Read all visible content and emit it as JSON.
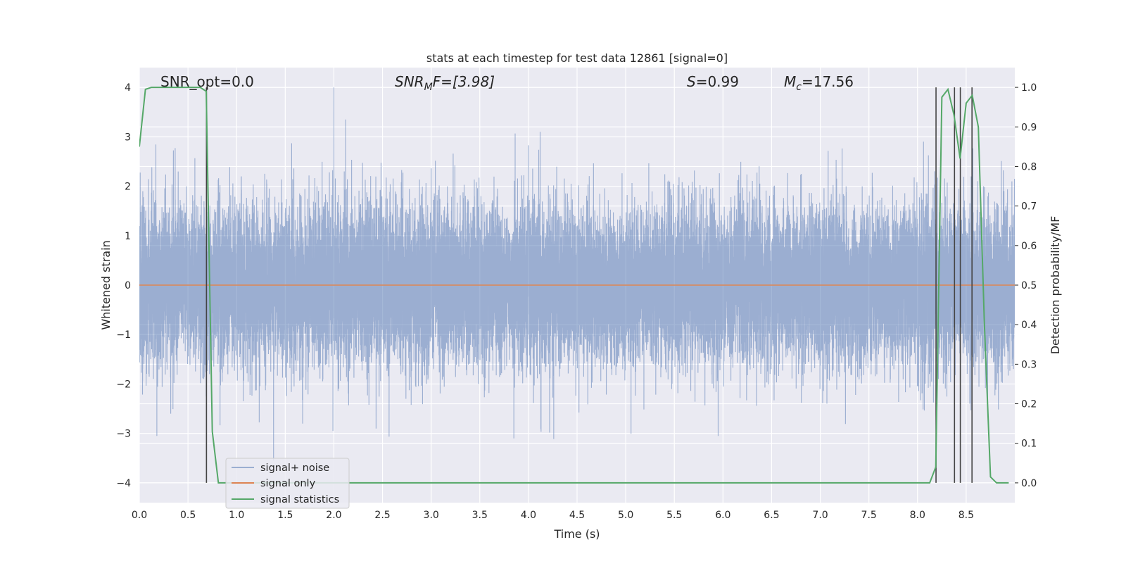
{
  "chart_data": {
    "type": "line",
    "title": "stats at each timestep for test data 12861 [signal=0]",
    "xlabel": "Time (s)",
    "ylabel_left": "Whitened strain",
    "ylabel_right": "Detection probability/MF",
    "xlim": [
      0.0,
      9.0
    ],
    "ylim_left": [
      -4.4,
      4.4
    ],
    "ylim_right": [
      -0.05,
      1.05
    ],
    "x_ticks": [
      0.0,
      0.5,
      1.0,
      1.5,
      2.0,
      2.5,
      3.0,
      3.5,
      4.0,
      4.5,
      5.0,
      5.5,
      6.0,
      6.5,
      7.0,
      7.5,
      8.0,
      8.5
    ],
    "x_tick_labels": [
      "0.0",
      "0.5",
      "1.0",
      "1.5",
      "2.0",
      "2.5",
      "3.0",
      "3.5",
      "4.0",
      "4.5",
      "5.0",
      "5.5",
      "6.0",
      "6.5",
      "7.0",
      "7.5",
      "8.0",
      "8.5"
    ],
    "y_left_ticks": [
      -4,
      -3,
      -2,
      -1,
      0,
      1,
      2,
      3,
      4
    ],
    "y_left_tick_labels": [
      "−4",
      "−3",
      "−2",
      "−1",
      "0",
      "1",
      "2",
      "3",
      "4"
    ],
    "y_right_ticks": [
      0.0,
      0.1,
      0.2,
      0.3,
      0.4,
      0.5,
      0.6,
      0.7,
      0.8,
      0.9,
      1.0
    ],
    "y_right_tick_labels": [
      "0.0",
      "0.1",
      "0.2",
      "0.3",
      "0.4",
      "0.5",
      "0.6",
      "0.7",
      "0.8",
      "0.9",
      "1.0"
    ],
    "grid": true,
    "legend_placement": "lower-left",
    "annotations": {
      "snr_opt": "SNR_opt=0.0",
      "snr_mf_prefix": "SNR",
      "snr_mf_sub": "M",
      "snr_mf_suffix": "F=[3.98]",
      "s_var": "S",
      "s_value": "=0.99",
      "mc_var": "M",
      "mc_sub": "c",
      "mc_value": "=17.56"
    },
    "series": [
      {
        "name": "signal+ noise",
        "color": "#4c72b0",
        "axis": "left",
        "style": "dense-noise",
        "duration": 9.0,
        "sample_rate": 2048,
        "std": 0.8,
        "seed": 12861,
        "spikes": [
          [
            2.0,
            4.0
          ],
          [
            2.12,
            3.35
          ],
          [
            1.38,
            -3.55
          ],
          [
            3.85,
            -3.1
          ],
          [
            4.12,
            3.1
          ],
          [
            0.18,
            -3.05
          ],
          [
            1.99,
            -2.95
          ],
          [
            5.95,
            -3.05
          ]
        ]
      },
      {
        "name": "signal only",
        "color": "#dd8452",
        "axis": "left",
        "x": [
          0.0,
          9.0
        ],
        "y": [
          0.0,
          0.0
        ]
      },
      {
        "name": "signal statistics",
        "color": "#55a868",
        "axis": "right",
        "x": [
          0.0,
          0.0625,
          0.125,
          0.1875,
          0.25,
          0.3125,
          0.375,
          0.4375,
          0.5,
          0.5625,
          0.625,
          0.6875,
          0.75,
          0.8125,
          0.875,
          8.0,
          8.0625,
          8.125,
          8.1875,
          8.25,
          8.3125,
          8.375,
          8.4375,
          8.5,
          8.5625,
          8.625,
          8.6875,
          8.75,
          8.8125,
          8.875,
          8.9375
        ],
        "y": [
          0.85,
          0.995,
          1.0,
          1.0,
          1.0,
          1.0,
          1.0,
          1.0,
          1.0,
          1.0,
          1.0,
          0.99,
          0.13,
          0.0,
          0.0,
          0.0,
          0.0,
          0.0,
          0.04,
          0.975,
          0.995,
          0.93,
          0.82,
          0.96,
          0.98,
          0.9,
          0.4,
          0.015,
          0.0,
          0.0,
          0.0
        ]
      }
    ],
    "vertical_markers": {
      "color": "#444444",
      "axis": "right",
      "y_range": [
        0.0,
        1.0
      ],
      "x": [
        0.69,
        8.19,
        8.38,
        8.44,
        8.56
      ]
    }
  }
}
